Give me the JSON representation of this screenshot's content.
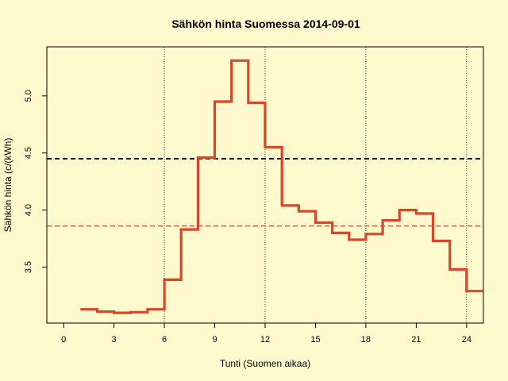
{
  "chart_data": {
    "type": "line",
    "title": "Sähkön hinta Suomessa 2014-09-01",
    "xlabel": "Tunti (Suomen aikaa)",
    "ylabel": "Sähkön hinta (c/(kWh)",
    "xlim": [
      -1,
      25
    ],
    "ylim": [
      3.01,
      5.43
    ],
    "x_ticks": [
      0,
      3,
      6,
      9,
      12,
      15,
      18,
      21,
      24
    ],
    "y_ticks": [
      3.5,
      4.0,
      4.5,
      5.0
    ],
    "y_tick_labels": [
      "3.5",
      "4.0",
      "4.5",
      "5.0"
    ],
    "vertical_lines": [
      6,
      12,
      18,
      24
    ],
    "step_color": "#d9472b",
    "series": [
      {
        "hours": [
          1,
          2,
          3,
          4,
          5,
          6,
          7,
          8,
          9,
          10,
          11,
          12,
          13,
          14,
          15,
          16,
          17,
          18,
          19,
          20,
          21,
          22,
          23,
          24
        ],
        "values": [
          3.13,
          3.11,
          3.1,
          3.105,
          3.13,
          3.39,
          3.83,
          4.46,
          4.95,
          5.31,
          4.94,
          4.55,
          4.04,
          3.99,
          3.89,
          3.8,
          3.74,
          3.79,
          3.91,
          4.0,
          3.97,
          3.73,
          3.48,
          3.29
        ]
      }
    ],
    "reference_lines": [
      {
        "value": 4.45,
        "color": "#000000",
        "style": "dashed"
      },
      {
        "value": 3.86,
        "color": "#d9472b",
        "style": "dashed"
      }
    ],
    "grid": false
  }
}
